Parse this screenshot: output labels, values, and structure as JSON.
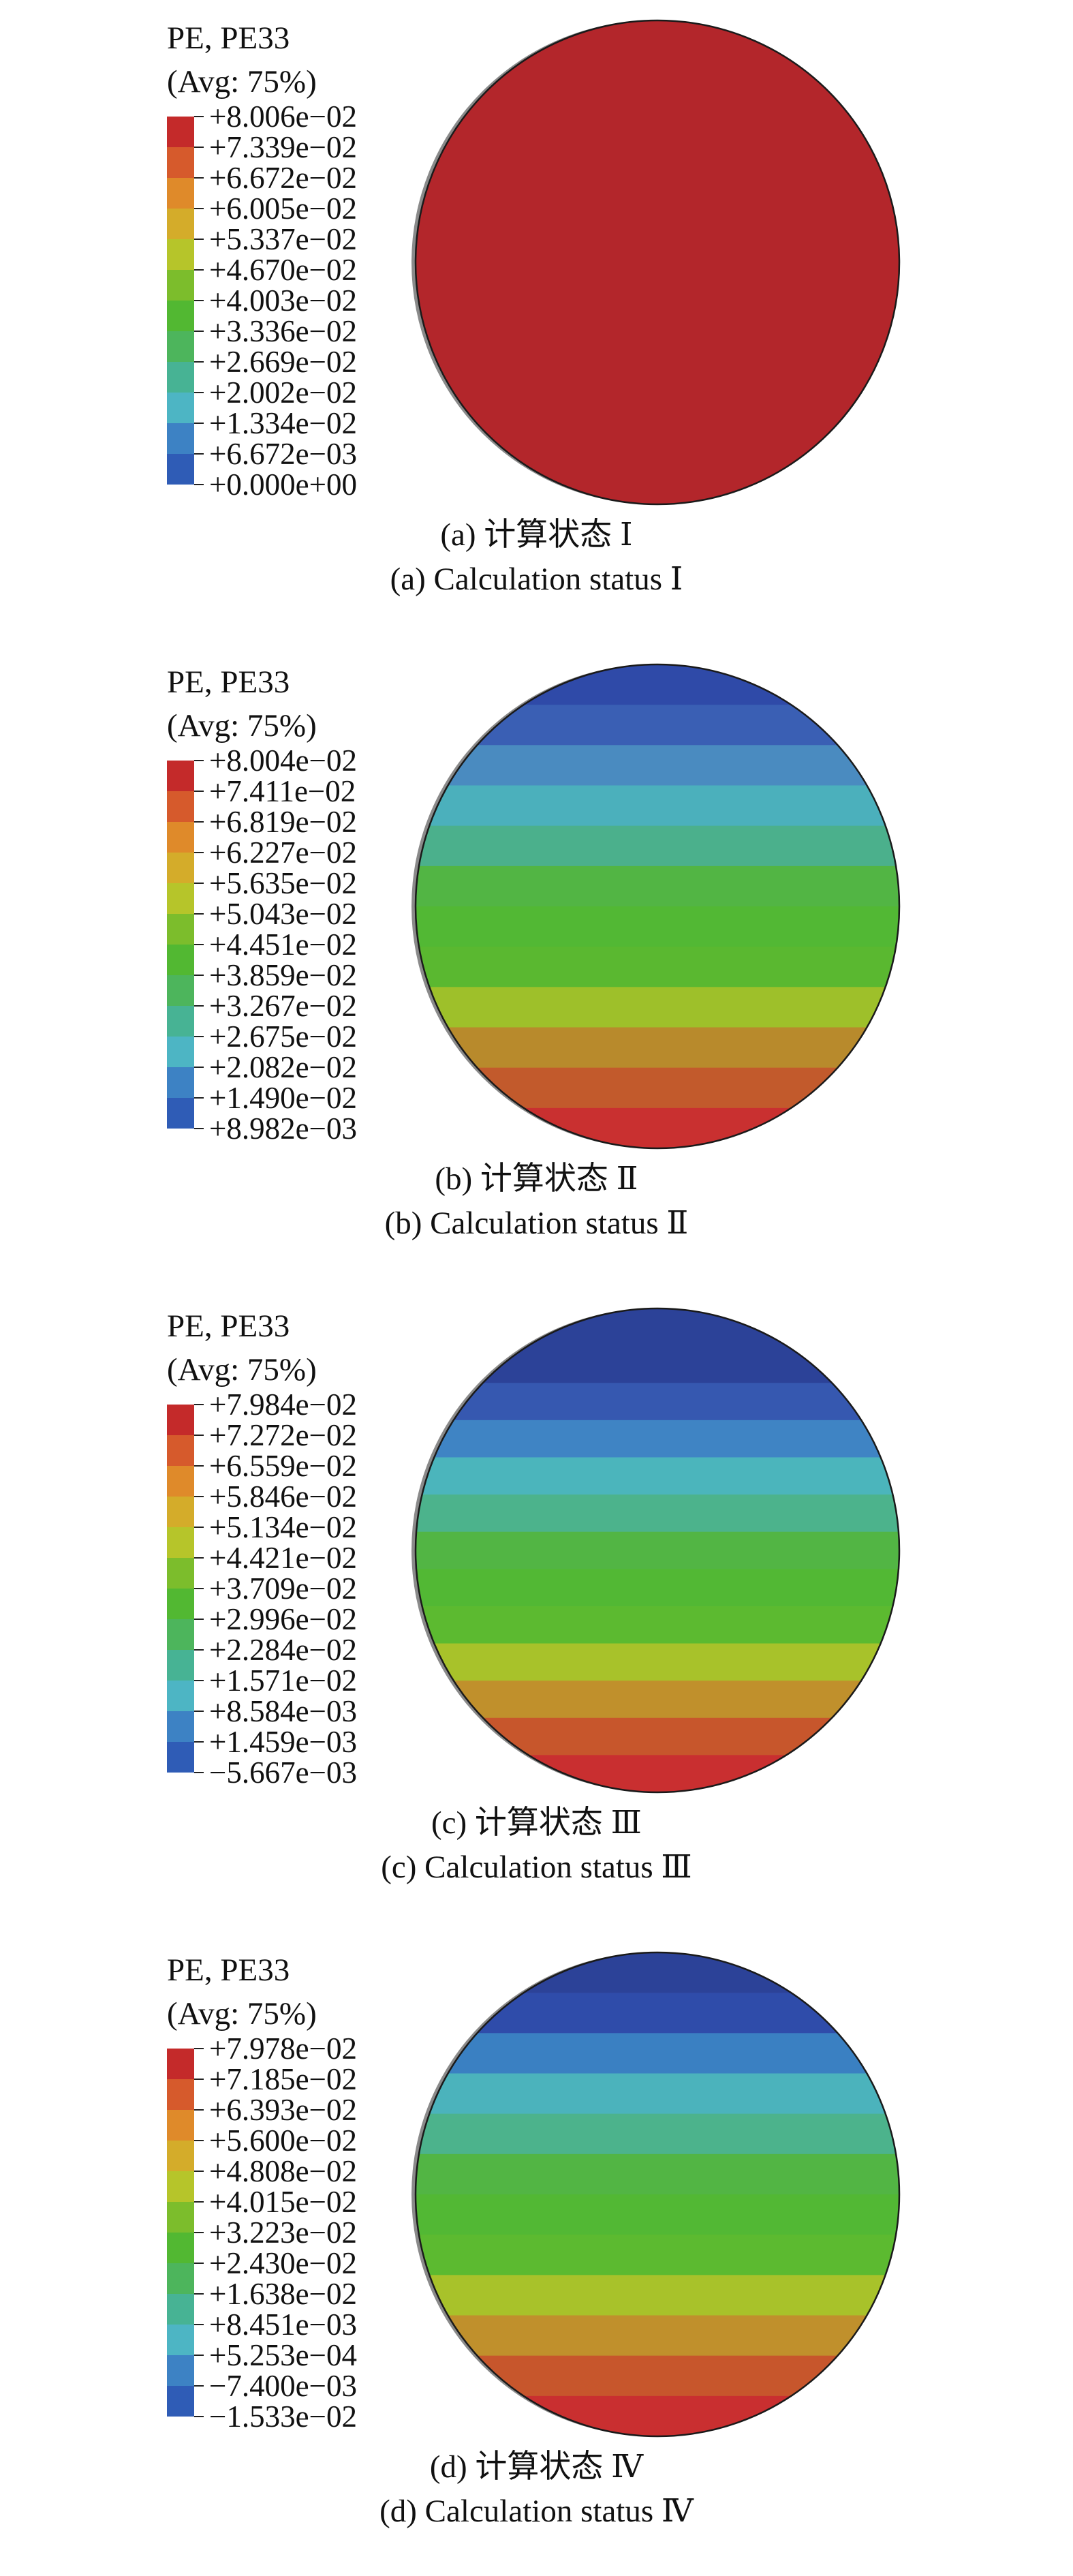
{
  "palette": [
    "#2a3f98",
    "#2f5cb6",
    "#3d82c4",
    "#4db5c4",
    "#47b394",
    "#4db55c",
    "#52b832",
    "#7cbd2c",
    "#b6c52a",
    "#d4ac2a",
    "#df8a2a",
    "#d65a2c",
    "#c42a2a"
  ],
  "panels": [
    {
      "legend_title": "PE, PE33",
      "legend_avg": "(Avg: 75%)",
      "labels": [
        "+8.006e−02",
        "+7.339e−02",
        "+6.672e−02",
        "+6.005e−02",
        "+5.337e−02",
        "+4.670e−02",
        "+4.003e−02",
        "+3.336e−02",
        "+2.669e−02",
        "+2.002e−02",
        "+1.334e−02",
        "+6.672e−03",
        "+0.000e+00"
      ],
      "bands": [
        "#b3262b"
      ],
      "caption_zh": "(a) 计算状态 Ⅰ",
      "caption_en": "(a) Calculation status Ⅰ"
    },
    {
      "legend_title": "PE, PE33",
      "legend_avg": "(Avg: 75%)",
      "labels": [
        "+8.004e−02",
        "+7.411e−02",
        "+6.819e−02",
        "+6.227e−02",
        "+5.635e−02",
        "+5.043e−02",
        "+4.451e−02",
        "+3.859e−02",
        "+3.267e−02",
        "+2.675e−02",
        "+2.082e−02",
        "+1.490e−02",
        "+8.982e−03"
      ],
      "bands": [
        "#2f4aa8",
        "#3a5fb4",
        "#4a8bc0",
        "#4bb0bc",
        "#4bb08c",
        "#52b544",
        "#52b834",
        "#5ab830",
        "#9ec02a",
        "#b88a2c",
        "#c25a2c",
        "#c93030"
      ],
      "caption_zh": "(b) 计算状态 Ⅱ",
      "caption_en": "(b) Calculation status Ⅱ"
    },
    {
      "legend_title": "PE, PE33",
      "legend_avg": "(Avg: 75%)",
      "labels": [
        "+7.984e−02",
        "+7.272e−02",
        "+6.559e−02",
        "+5.846e−02",
        "+5.134e−02",
        "+4.421e−02",
        "+3.709e−02",
        "+2.996e−02",
        "+2.284e−02",
        "+1.571e−02",
        "+8.584e−03",
        "+1.459e−03",
        "−5.667e−03"
      ],
      "bands": [
        "#2c4298",
        "#2c4298",
        "#3658b0",
        "#3f84c4",
        "#4bb5bc",
        "#4cb38c",
        "#52b544",
        "#52b834",
        "#5cba30",
        "#a8c22a",
        "#c0902c",
        "#c7562c",
        "#c92f30"
      ],
      "caption_zh": "(c) 计算状态 Ⅲ",
      "caption_en": "(c) Calculation status Ⅲ"
    },
    {
      "legend_title": "PE, PE33",
      "legend_avg": "(Avg: 75%)",
      "labels": [
        "+7.978e−02",
        "+7.185e−02",
        "+6.393e−02",
        "+5.600e−02",
        "+4.808e−02",
        "+4.015e−02",
        "+3.223e−02",
        "+2.430e−02",
        "+1.638e−02",
        "+8.451e−03",
        "+5.253e−04",
        "−7.400e−03",
        "−1.533e−02"
      ],
      "bands": [
        "#2c4298",
        "#2f4caa",
        "#3a80c2",
        "#4bb3bc",
        "#4cb38c",
        "#52b544",
        "#52b834",
        "#5cba30",
        "#a8c22a",
        "#c0902c",
        "#c7562c",
        "#c92f30"
      ],
      "caption_zh": "(d) 计算状态 Ⅳ",
      "caption_en": "(d) Calculation status Ⅳ"
    }
  ]
}
